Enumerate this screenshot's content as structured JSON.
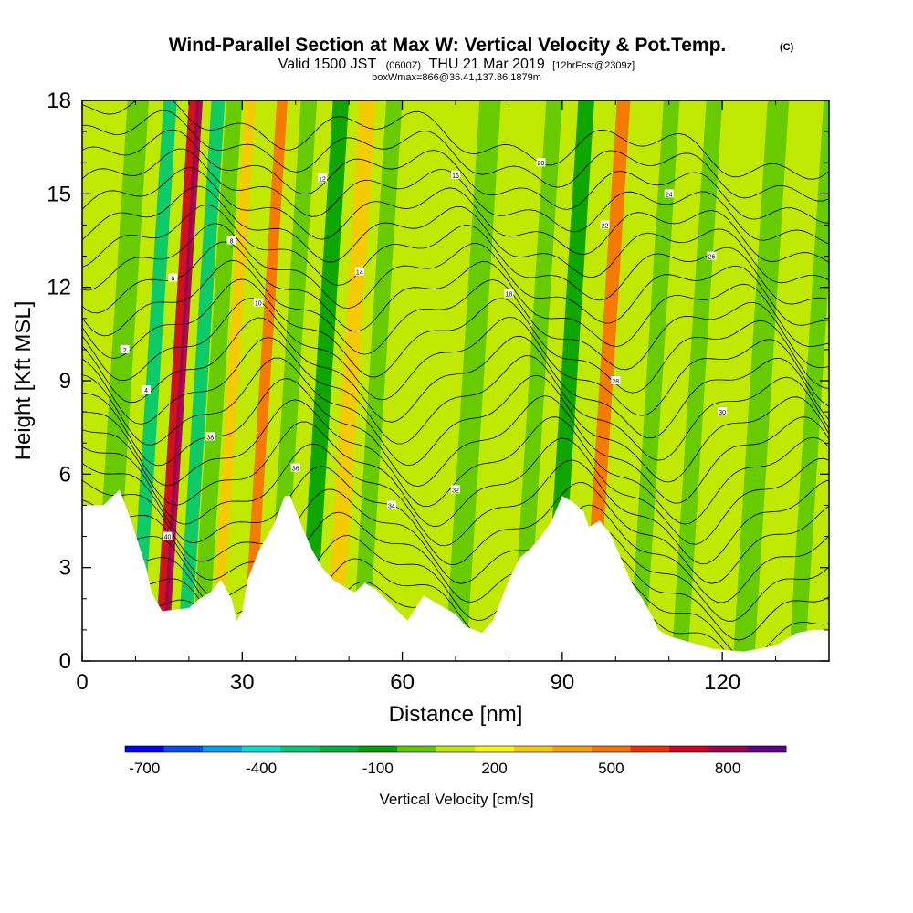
{
  "chart_data": {
    "type": "heatmap",
    "title": "Wind-Parallel Section at Max W: Vertical Velocity & Pot.Temp.",
    "title_mark": "(C)",
    "subtitle": {
      "prefix": "Valid 1500 JST",
      "utc": "(0600Z)",
      "date": "THU 21 Mar 2019",
      "forecast": "[12hrFcst@2309z]"
    },
    "info_line": "boxWmax=866@36.41,137.86,1879m",
    "xlabel": "Distance [nm]",
    "ylabel": "Height [Kft MSL]",
    "xlim": [
      0,
      140
    ],
    "ylim": [
      0,
      18
    ],
    "x_ticks": [
      0,
      30,
      60,
      90,
      120
    ],
    "y_ticks": [
      0,
      3,
      6,
      9,
      12,
      15,
      18
    ],
    "colorbar": {
      "label": "Vertical Velocity [cm/s]",
      "levels": [
        -750,
        -650,
        -550,
        -450,
        -350,
        -250,
        -150,
        -50,
        50,
        150,
        250,
        350,
        450,
        550,
        650,
        750,
        850
      ],
      "colors": [
        "#0000f8",
        "#0050f0",
        "#00a0f0",
        "#00e0d0",
        "#00c870",
        "#00b040",
        "#00a000",
        "#60c800",
        "#c0e800",
        "#f8f800",
        "#f8c800",
        "#f8a000",
        "#f87000",
        "#f03000",
        "#d00020",
        "#a00050",
        "#600090"
      ],
      "tick_labels": [
        "-700",
        "-400",
        "-100",
        "200",
        "500",
        "800"
      ],
      "tick_values": [
        -700,
        -400,
        -100,
        200,
        500,
        800
      ]
    },
    "velocity_bands": [
      {
        "x": 4,
        "w": 4,
        "value": -100
      },
      {
        "x": 10,
        "w": 2.5,
        "value": -400
      },
      {
        "x": 14.5,
        "w": 2,
        "value": 600
      },
      {
        "x": 15.5,
        "w": 1.2,
        "value": 750
      },
      {
        "x": 19,
        "w": 2.5,
        "value": -400
      },
      {
        "x": 22,
        "w": 3,
        "value": -100
      },
      {
        "x": 25,
        "w": 2,
        "value": 200
      },
      {
        "x": 31,
        "w": 2,
        "value": 400
      },
      {
        "x": 36,
        "w": 3,
        "value": -100
      },
      {
        "x": 42,
        "w": 3,
        "value": -150
      },
      {
        "x": 47,
        "w": 3,
        "value": 200
      },
      {
        "x": 52,
        "w": 3,
        "value": -100
      },
      {
        "x": 60,
        "w": 4,
        "value": 0
      },
      {
        "x": 70,
        "w": 4,
        "value": -50
      },
      {
        "x": 82,
        "w": 3,
        "value": -50
      },
      {
        "x": 88,
        "w": 3,
        "value": -150
      },
      {
        "x": 95,
        "w": 2.5,
        "value": 400
      },
      {
        "x": 104,
        "w": 3,
        "value": -100
      },
      {
        "x": 112,
        "w": 3,
        "value": -50
      },
      {
        "x": 124,
        "w": 4,
        "value": -100
      },
      {
        "x": 134,
        "w": 3,
        "value": -50
      }
    ],
    "terrain": [
      [
        0,
        5.0
      ],
      [
        4,
        5.0
      ],
      [
        7,
        5.5
      ],
      [
        9,
        4.6
      ],
      [
        12,
        3.0
      ],
      [
        13,
        2.2
      ],
      [
        15,
        1.6
      ],
      [
        20,
        1.7
      ],
      [
        22,
        2.0
      ],
      [
        24,
        2.2
      ],
      [
        26,
        2.6
      ],
      [
        28,
        2.0
      ],
      [
        29,
        1.3
      ],
      [
        30,
        1.6
      ],
      [
        31,
        2.6
      ],
      [
        33,
        3.5
      ],
      [
        36,
        4.4
      ],
      [
        38,
        5.3
      ],
      [
        39,
        5.3
      ],
      [
        41,
        4.4
      ],
      [
        43,
        3.6
      ],
      [
        45,
        3.0
      ],
      [
        47,
        2.6
      ],
      [
        49,
        2.4
      ],
      [
        51,
        2.2
      ],
      [
        53,
        2.5
      ],
      [
        55,
        2.3
      ],
      [
        58,
        1.8
      ],
      [
        61,
        1.3
      ],
      [
        64,
        2.1
      ],
      [
        67,
        1.8
      ],
      [
        70,
        1.5
      ],
      [
        72,
        1.1
      ],
      [
        75,
        0.9
      ],
      [
        77,
        1.3
      ],
      [
        80,
        2.6
      ],
      [
        82,
        3.3
      ],
      [
        84,
        3.6
      ],
      [
        86,
        4.0
      ],
      [
        88,
        4.5
      ],
      [
        90,
        5.3
      ],
      [
        92,
        5.1
      ],
      [
        94,
        4.8
      ],
      [
        95,
        4.3
      ],
      [
        97,
        4.5
      ],
      [
        99,
        4.1
      ],
      [
        101,
        3.3
      ],
      [
        103,
        2.5
      ],
      [
        105,
        2.0
      ],
      [
        107,
        1.4
      ],
      [
        108,
        1.0
      ],
      [
        110,
        0.8
      ],
      [
        114,
        0.6
      ],
      [
        118,
        0.4
      ],
      [
        124,
        0.3
      ],
      [
        130,
        0.5
      ],
      [
        134,
        0.9
      ],
      [
        137,
        1.0
      ],
      [
        140,
        1.0
      ]
    ],
    "theta_contours": {
      "count": 26,
      "label_values": [
        "2",
        "4",
        "6",
        "8",
        "10",
        "12",
        "14",
        "16",
        "18",
        "20",
        "22",
        "24",
        "26",
        "28",
        "30",
        "32",
        "34",
        "36",
        "38",
        "40"
      ]
    }
  }
}
